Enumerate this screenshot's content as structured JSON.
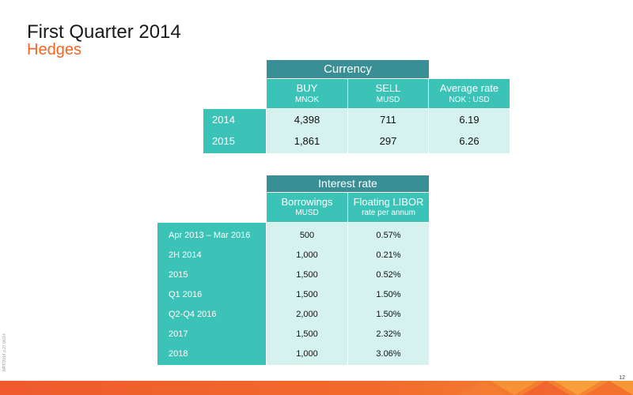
{
  "header": {
    "title": "First Quarter 2014",
    "subtitle": "Hedges"
  },
  "currency": {
    "header": "Currency",
    "columns": [
      {
        "label": "BUY",
        "unit": "MNOK"
      },
      {
        "label": "SELL",
        "unit": "MUSD"
      },
      {
        "label": "Average rate",
        "unit": "NOK : USD"
      }
    ],
    "rows": [
      {
        "year": "2014",
        "buy": "4,398",
        "sell": "711",
        "rate": "6.19"
      },
      {
        "year": "2015",
        "buy": "1,861",
        "sell": "297",
        "rate": "6.26"
      }
    ]
  },
  "interest": {
    "header": "Interest rate",
    "columns": [
      {
        "label": "Borrowings",
        "unit": "MUSD"
      },
      {
        "label": "Floating LIBOR",
        "unit": "rate per annum"
      }
    ],
    "rows": [
      {
        "period": "Apr 2013 – Mar 2016",
        "borrowings": "500",
        "rate": "0.57%"
      },
      {
        "period": "2H 2014",
        "borrowings": "1,000",
        "rate": "0.21%"
      },
      {
        "period": "2015",
        "borrowings": "1,500",
        "rate": "0.52%"
      },
      {
        "period": "Q1 2016",
        "borrowings": "1,500",
        "rate": "1.50%"
      },
      {
        "period": "Q2-Q4 2016",
        "borrowings": "2,000",
        "rate": "1.50%"
      },
      {
        "period": "2017",
        "borrowings": "1,500",
        "rate": "2.32%"
      },
      {
        "period": "2018",
        "borrowings": "1,000",
        "rate": "3.06%"
      }
    ]
  },
  "footer": {
    "page_number": "12",
    "doc_code": "NRT/2014 p.27 06/14",
    "colors": {
      "band": "#f26522",
      "accent": "#3cc3b7",
      "dark": "#3a8f96",
      "pale": "#d5f2ef"
    }
  }
}
